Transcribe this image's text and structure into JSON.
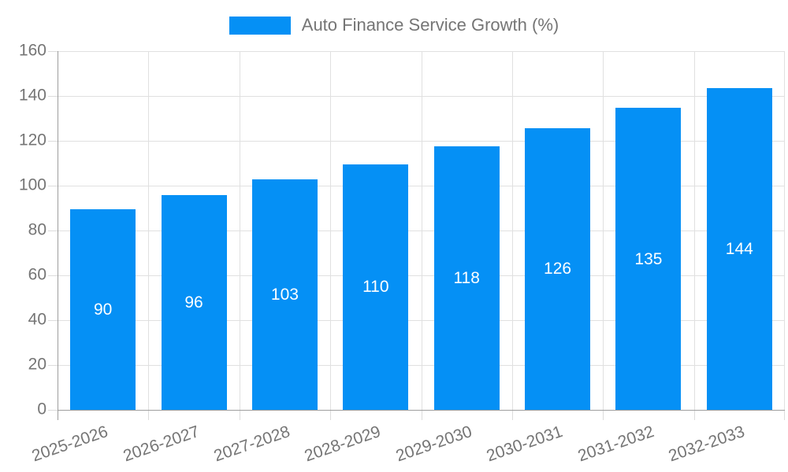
{
  "legend": {
    "label": "Auto Finance Service Growth (%)"
  },
  "chart_data": {
    "type": "bar",
    "title": "Auto Finance Service Growth (%)",
    "categories": [
      "2025-2026",
      "2026-2027",
      "2027-2028",
      "2028-2029",
      "2029-2030",
      "2030-2031",
      "2031-2032",
      "2032-2033"
    ],
    "values": [
      90,
      96,
      103,
      110,
      118,
      126,
      135,
      144
    ],
    "series_name": "Auto Finance Service Growth (%)",
    "xlabel": "",
    "ylabel": "",
    "ylim": [
      0,
      160
    ],
    "y_ticks": [
      0,
      20,
      40,
      60,
      80,
      100,
      120,
      140,
      160
    ],
    "grid": true,
    "legend_position": "top-center",
    "value_labels": "centered-inside-bars",
    "colors": {
      "bar": "#0590f5",
      "value_label": "#ffffff",
      "axis_text": "#757575",
      "gridline": "#e0e0e0",
      "axis_line": "#9e9e9e"
    }
  }
}
